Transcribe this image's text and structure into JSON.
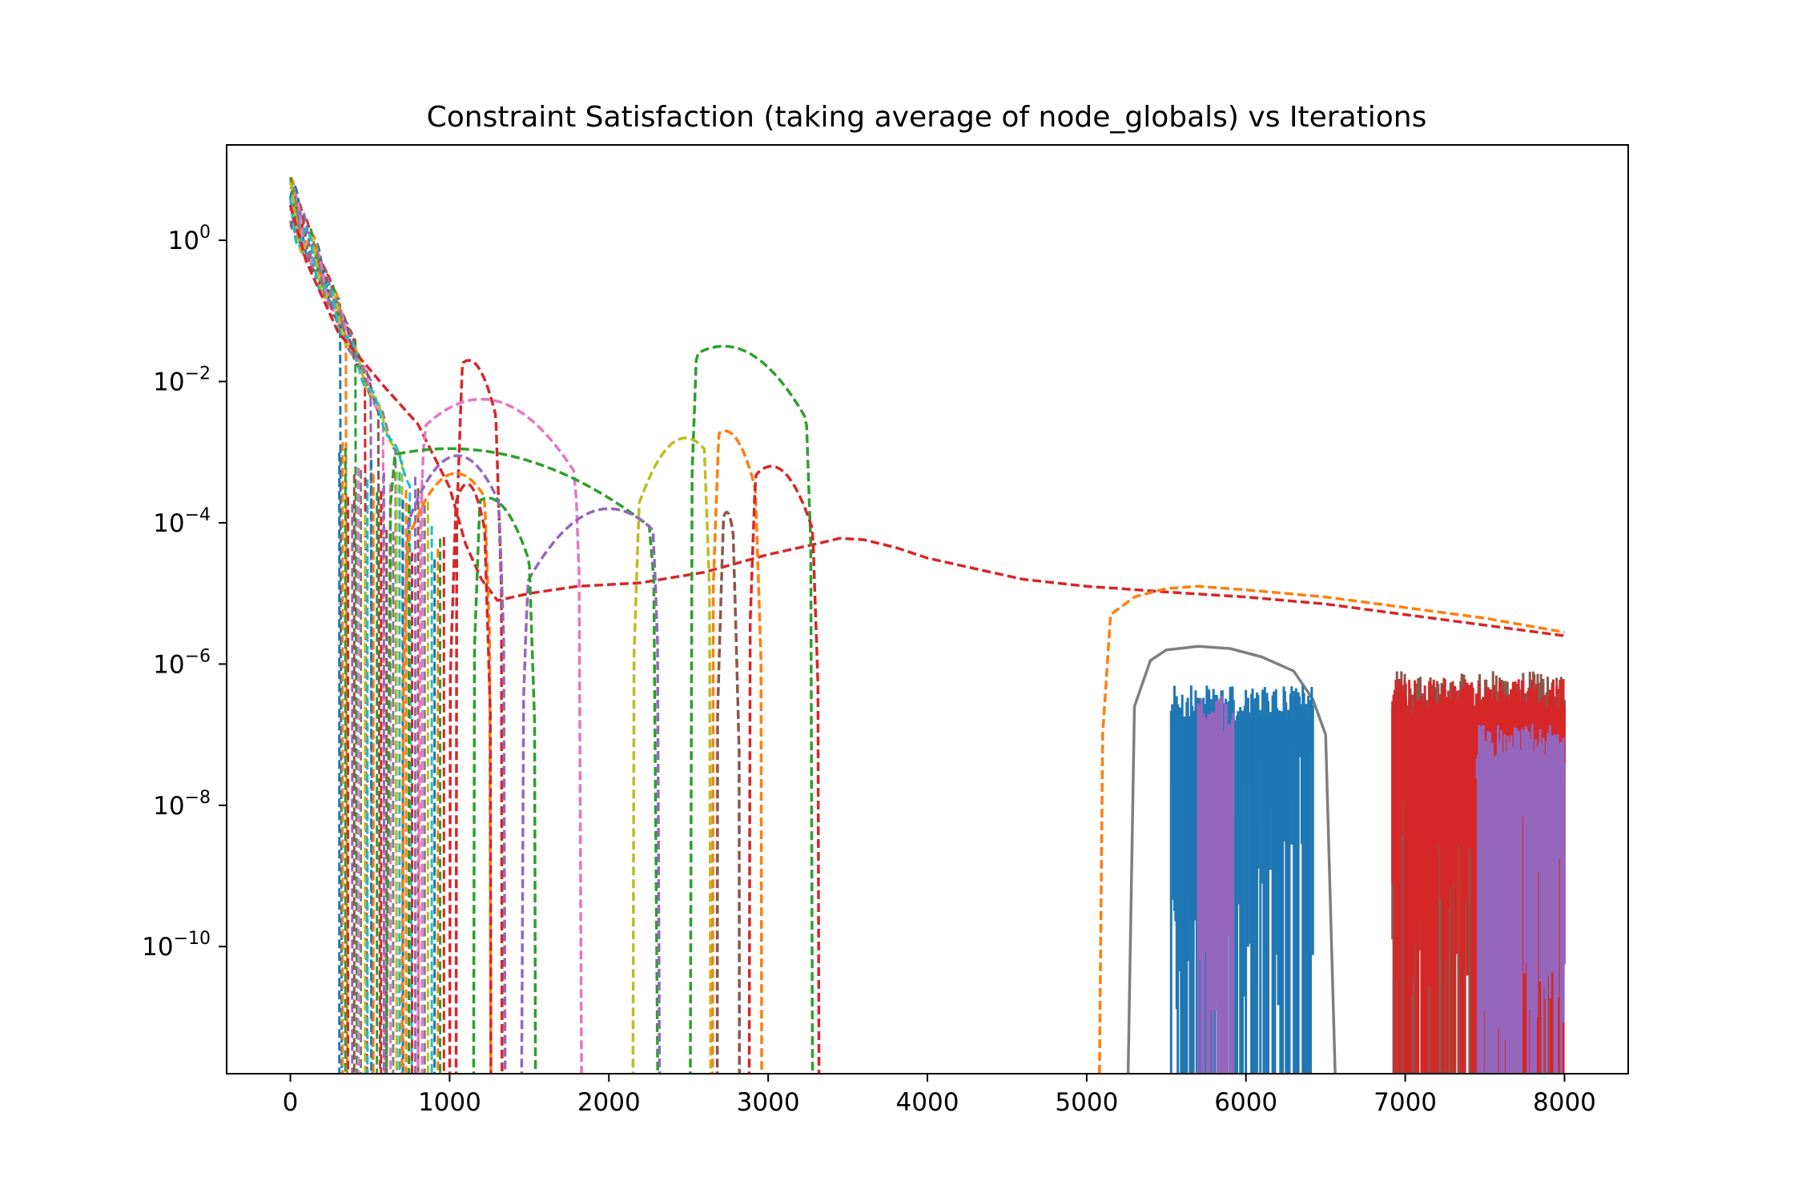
{
  "chart_data": {
    "type": "line",
    "title": "Constraint Satisfaction (taking average of node_globals) vs Iterations",
    "xlabel": "",
    "ylabel": "",
    "xlim": [
      -400,
      8400
    ],
    "ylim_log10": [
      -11.8,
      1.35
    ],
    "y_scale": "log",
    "grid": false,
    "legend": "none",
    "x_ticks": [
      0,
      1000,
      2000,
      3000,
      4000,
      5000,
      6000,
      7000,
      8000
    ],
    "x_tick_labels": [
      "0",
      "1000",
      "2000",
      "3000",
      "4000",
      "5000",
      "6000",
      "7000",
      "8000"
    ],
    "y_ticks_log10": [
      0,
      -2,
      -4,
      -6,
      -8,
      -10
    ],
    "y_tick_labels": [
      {
        "base": "10",
        "exp": "0"
      },
      {
        "base": "10",
        "exp": "−2"
      },
      {
        "base": "10",
        "exp": "−4"
      },
      {
        "base": "10",
        "exp": "−6"
      },
      {
        "base": "10",
        "exp": "−8"
      },
      {
        "base": "10",
        "exp": "−10"
      }
    ],
    "colors": [
      "#1f77b4",
      "#ff7f0e",
      "#2ca02c",
      "#d62728",
      "#9467bd",
      "#8c564b",
      "#e377c2",
      "#7f7f7f",
      "#bcbd22",
      "#17becf"
    ],
    "series": [
      {
        "color": "#d62728",
        "style": "dashed",
        "x": [
          0,
          100,
          200,
          300,
          600,
          800,
          1000,
          1100,
          1200,
          1300,
          1500,
          1800,
          2200,
          2600,
          3000,
          3300,
          3450,
          3600,
          3800,
          4000,
          4300,
          4600,
          5000,
          5200,
          5500,
          6000,
          6500,
          7000,
          7500,
          8000
        ],
        "y_log10": [
          0.5,
          -0.3,
          -0.8,
          -1.3,
          -2.1,
          -2.6,
          -3.5,
          -4.3,
          -4.8,
          -5.1,
          -5.0,
          -4.9,
          -4.85,
          -4.7,
          -4.45,
          -4.3,
          -4.22,
          -4.24,
          -4.35,
          -4.5,
          -4.65,
          -4.8,
          -4.9,
          -4.93,
          -4.98,
          -5.05,
          -5.15,
          -5.3,
          -5.45,
          -5.6
        ]
      },
      {
        "color": "#ff7f0e",
        "style": "dashed",
        "x": [
          5080,
          5100,
          5150,
          5300,
          5500,
          5700,
          6000,
          6500,
          7000,
          7500,
          8000
        ],
        "y_log10": [
          -11.8,
          -7.0,
          -5.3,
          -5.05,
          -4.93,
          -4.9,
          -4.95,
          -5.05,
          -5.2,
          -5.35,
          -5.55
        ]
      },
      {
        "color": "#7f7f7f",
        "style": "solid",
        "x": [
          5260,
          5300,
          5400,
          5500,
          5700,
          5900,
          6100,
          6300,
          6420,
          6500,
          6560
        ],
        "y_log10": [
          -11.8,
          -6.6,
          -5.95,
          -5.8,
          -5.75,
          -5.78,
          -5.9,
          -6.1,
          -6.5,
          -7.0,
          -11.8
        ]
      },
      {
        "color": "#1f77b4",
        "style": "band",
        "x_range": [
          5530,
          6420
        ],
        "y_log10_range": [
          -11.8,
          -6.3
        ]
      },
      {
        "color": "#9467bd",
        "style": "band",
        "x_range": [
          5700,
          5920
        ],
        "y_log10_range": [
          -11.8,
          -6.45
        ]
      },
      {
        "color": "#8c564b",
        "style": "band",
        "x_range": [
          6920,
          8000
        ],
        "y_log10_range": [
          -11.8,
          -6.1
        ]
      },
      {
        "color": "#d62728",
        "style": "band",
        "x_range": [
          6920,
          8000
        ],
        "y_log10_range": [
          -11.8,
          -6.2
        ]
      },
      {
        "color": "#9467bd",
        "style": "band",
        "x_range": [
          7450,
          8000
        ],
        "y_log10_range": [
          -11.8,
          -6.85
        ]
      },
      {
        "color": "#d62728",
        "style": "dashed",
        "peak_x": 1120,
        "peak_y_log10": -1.7,
        "x_range": [
          1040,
          1330
        ]
      },
      {
        "color": "#e377c2",
        "style": "dashed",
        "peak_x": 1200,
        "peak_y_log10": -2.25,
        "x_range": [
          800,
          1830
        ]
      },
      {
        "color": "#2ca02c",
        "style": "dashed",
        "peak_x": 1000,
        "peak_y_log10": -2.95,
        "x_range": [
          600,
          2310
        ]
      },
      {
        "color": "#2ca02c",
        "style": "dashed",
        "peak_x": 2720,
        "peak_y_log10": -1.5,
        "x_range": [
          2510,
          3280
        ]
      },
      {
        "color": "#bcbd22",
        "style": "dashed",
        "peak_x": 2480,
        "peak_y_log10": -2.8,
        "x_range": [
          2150,
          2640
        ]
      },
      {
        "color": "#ff7f0e",
        "style": "dashed",
        "peak_x": 2730,
        "peak_y_log10": -2.7,
        "x_range": [
          2650,
          2960
        ]
      },
      {
        "color": "#d62728",
        "style": "dashed",
        "peak_x": 3020,
        "peak_y_log10": -3.2,
        "x_range": [
          2880,
          3320
        ]
      },
      {
        "color": "#9467bd",
        "style": "dashed",
        "peak_x": 2000,
        "peak_y_log10": -3.8,
        "x_range": [
          1450,
          2320
        ]
      },
      {
        "color": "#8c564b",
        "style": "dashed",
        "peak_x": 2740,
        "peak_y_log10": -3.85,
        "x_range": [
          2680,
          2820
        ]
      },
      {
        "color": "#9467bd",
        "style": "dashed",
        "peak_x": 1050,
        "peak_y_log10": -3.05,
        "x_range": [
          700,
          1350
        ]
      },
      {
        "color": "#ff7f0e",
        "style": "dashed",
        "peak_x": 1040,
        "peak_y_log10": -3.3,
        "x_range": [
          700,
          1260
        ]
      },
      {
        "color": "#2ca02c",
        "style": "dashed",
        "peak_x": 1240,
        "peak_y_log10": -3.65,
        "x_range": [
          1150,
          1540
        ]
      },
      {
        "color": "#d62728",
        "style": "dashed",
        "peak_x": 1110,
        "peak_y_log10": -3.45,
        "x_range": [
          1000,
          1260
        ]
      }
    ]
  }
}
